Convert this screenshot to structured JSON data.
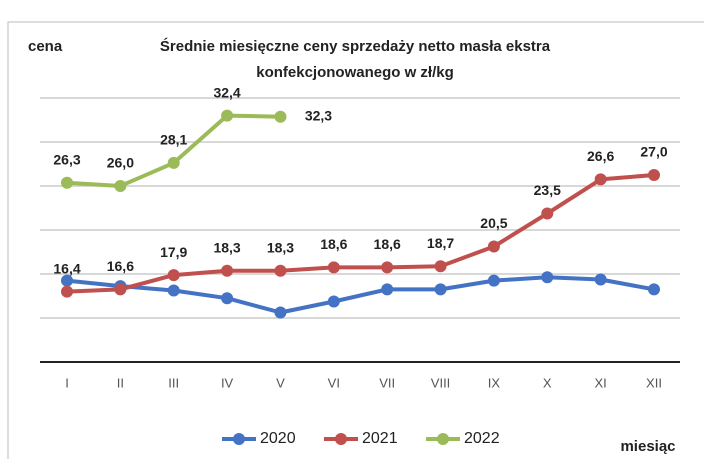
{
  "chart_data": {
    "type": "line",
    "title": "Średnie miesięczne ceny sprzedaży netto masła ekstra",
    "subtitle": "konfekcjonowanego  w zł/kg",
    "y_label": "cena",
    "x_label": "miesiąc",
    "categories": [
      "I",
      "II",
      "III",
      "IV",
      "V",
      "VI",
      "VII",
      "VIII",
      "IX",
      "X",
      "XI",
      "XII"
    ],
    "series": [
      {
        "name": "2020",
        "color": "#4472c4",
        "values": [
          17.4,
          16.9,
          16.5,
          15.8,
          14.5,
          15.5,
          16.6,
          16.6,
          17.4,
          17.7,
          17.5,
          16.6
        ]
      },
      {
        "name": "2021",
        "color": "#c0504d",
        "values": [
          16.4,
          16.6,
          17.9,
          18.3,
          18.3,
          18.6,
          18.6,
          18.7,
          20.5,
          23.5,
          26.6,
          27.0
        ],
        "value_labels": [
          "16,4",
          "16,6",
          "17,9",
          "18,3",
          "18,3",
          "18,6",
          "18,6",
          "18,7",
          "20,5",
          "23,5",
          "26,6",
          "27,0"
        ]
      },
      {
        "name": "2022",
        "color": "#9bbb59",
        "values": [
          26.3,
          26.0,
          28.1,
          32.4,
          32.3,
          null,
          null,
          null,
          null,
          null,
          null,
          null
        ],
        "value_labels": [
          "26,3",
          "26,0",
          "28,1",
          "32,4",
          "32,3",
          null,
          null,
          null,
          null,
          null,
          null,
          null
        ]
      }
    ],
    "ylim": [
      10,
      34
    ],
    "yticks": [
      14,
      18,
      22,
      26,
      30,
      34
    ],
    "grid": true,
    "legend": "bottom"
  }
}
